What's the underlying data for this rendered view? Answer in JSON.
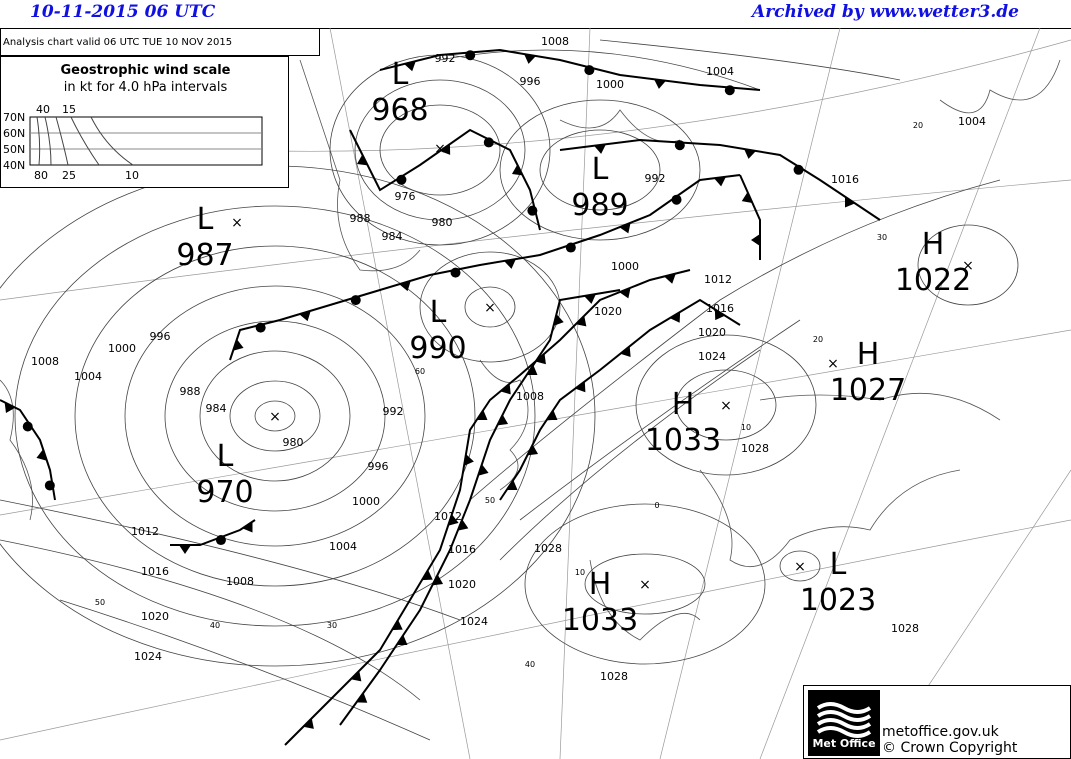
{
  "header": {
    "date_time": "10-11-2015  06 UTC",
    "archive": "Archived by www.wetter3.de"
  },
  "info": {
    "valid_text": "Analysis chart  valid 06 UTC TUE 10  NOV 2015"
  },
  "wind_scale": {
    "title": "Geostrophic wind scale",
    "subtitle": "in kt for 4.0 hPa intervals",
    "lat_labels": [
      "70N",
      "60N",
      "50N",
      "40N"
    ],
    "top_labels": [
      "40",
      "15"
    ],
    "bottom_labels": [
      "80",
      "25",
      "10"
    ]
  },
  "pressure_centres": [
    {
      "type": "L",
      "value": "968"
    },
    {
      "type": "L",
      "value": "987"
    },
    {
      "type": "L",
      "value": "989"
    },
    {
      "type": "H",
      "value": "1022"
    },
    {
      "type": "L",
      "value": "990"
    },
    {
      "type": "H",
      "value": "1027"
    },
    {
      "type": "H",
      "value": "1033"
    },
    {
      "type": "L",
      "value": "970"
    },
    {
      "type": "H",
      "value": "1033"
    },
    {
      "type": "L",
      "value": "1023"
    }
  ],
  "isobar_labels": [
    "1008",
    "992",
    "996",
    "1004",
    "1000",
    "976",
    "980",
    "984",
    "988",
    "992",
    "1000",
    "1008",
    "1004",
    "1000",
    "996",
    "988",
    "984",
    "980",
    "992",
    "996",
    "1000",
    "1004",
    "1008",
    "1012",
    "1016",
    "1020",
    "1024",
    "1008",
    "1012",
    "1016",
    "1020",
    "1024",
    "1028",
    "1028",
    "1028",
    "1028",
    "1016",
    "1020",
    "1024",
    "1012",
    "1016",
    "1020",
    "1004",
    "1012",
    "1016"
  ],
  "latlon_labels": [
    "60",
    "50",
    "40",
    "30",
    "20",
    "10",
    "0",
    "40",
    "30",
    "20",
    "10",
    "50",
    "40"
  ],
  "footer": {
    "logo_text": "Met Office",
    "site": "metoffice.gov.uk",
    "copyright": "© Crown Copyright"
  },
  "colors": {
    "header": "#1010e0",
    "lines": "#000000",
    "coast": "#555555"
  }
}
